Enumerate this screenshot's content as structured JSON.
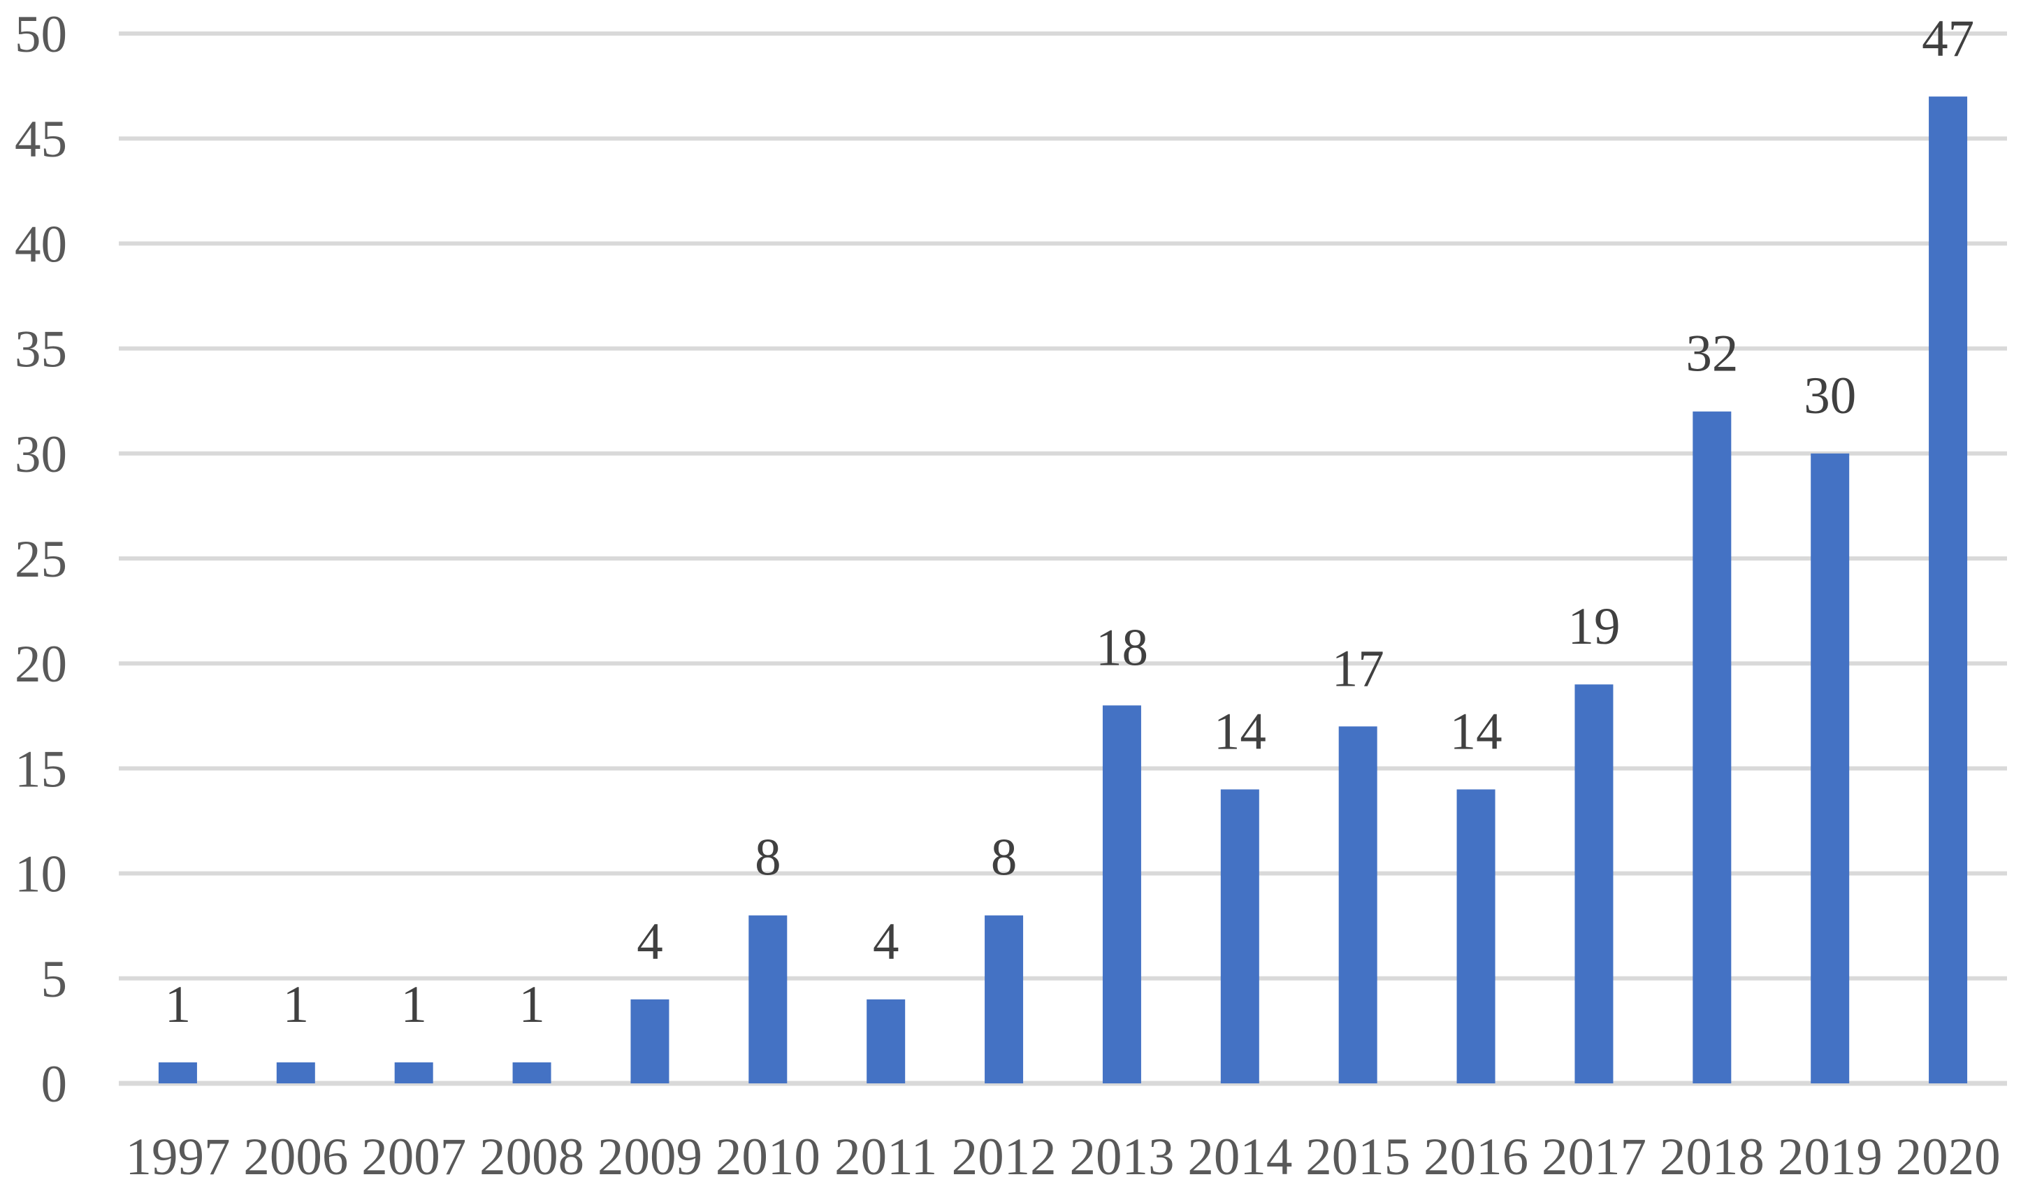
{
  "chart_data": {
    "type": "bar",
    "title": "",
    "xlabel": "",
    "ylabel": "",
    "categories": [
      "1997",
      "2006",
      "2007",
      "2008",
      "2009",
      "2010",
      "2011",
      "2012",
      "2013",
      "2014",
      "2015",
      "2016",
      "2017",
      "2018",
      "2019",
      "2020"
    ],
    "values": [
      1,
      1,
      1,
      1,
      4,
      8,
      4,
      8,
      18,
      14,
      17,
      14,
      19,
      32,
      30,
      47
    ],
    "data_labels": [
      1,
      1,
      1,
      1,
      4,
      8,
      4,
      8,
      18,
      14,
      17,
      14,
      19,
      32,
      30,
      47
    ],
    "ylim": [
      0,
      50
    ],
    "yticks": [
      0,
      5,
      10,
      15,
      20,
      25,
      30,
      35,
      40,
      45,
      50
    ],
    "grid": true,
    "legend_position": "none",
    "colors": {
      "bar": "#4472C4",
      "gridline": "#D9D9D9",
      "zero_line": "#D9D9D9",
      "axis_tick_label": "#595959",
      "data_label": "#404040",
      "background": "#FFFFFF"
    }
  }
}
